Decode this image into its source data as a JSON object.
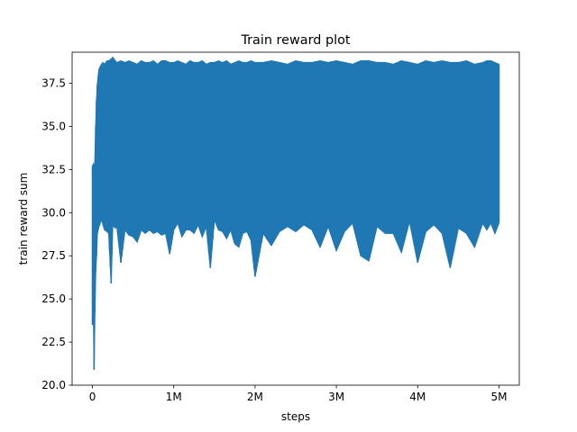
{
  "chart_data": {
    "type": "line",
    "title": "Train reward plot",
    "xlabel": "steps",
    "ylabel": "train reward sum",
    "xlim": [
      -250000,
      5250000
    ],
    "ylim": [
      20.0,
      39.3
    ],
    "grid": false,
    "legend": "none",
    "x_ticks": [
      {
        "value": 0,
        "label": "0"
      },
      {
        "value": 1000000,
        "label": "1M"
      },
      {
        "value": 2000000,
        "label": "2M"
      },
      {
        "value": 3000000,
        "label": "3M"
      },
      {
        "value": 4000000,
        "label": "4M"
      },
      {
        "value": 5000000,
        "label": "5M"
      }
    ],
    "y_ticks": [
      {
        "value": 20.0,
        "label": "20.0"
      },
      {
        "value": 22.5,
        "label": "22.5"
      },
      {
        "value": 25.0,
        "label": "25.0"
      },
      {
        "value": 27.5,
        "label": "27.5"
      },
      {
        "value": 30.0,
        "label": "30.0"
      },
      {
        "value": 32.5,
        "label": "32.5"
      },
      {
        "value": 35.0,
        "label": "35.0"
      },
      {
        "value": 37.5,
        "label": "37.5"
      }
    ],
    "series": [
      {
        "color": "#1f77b4",
        "x": [
          0,
          10000,
          20000,
          30000,
          40000,
          50000,
          60000,
          70000,
          80000,
          90000,
          100000,
          110000,
          130000,
          150000,
          180000,
          200000,
          230000,
          250000,
          280000,
          300000,
          350000,
          400000,
          450000,
          500000,
          550000,
          600000,
          650000,
          700000,
          750000,
          800000,
          850000,
          900000,
          950000,
          1000000,
          1050000,
          1100000,
          1150000,
          1200000,
          1250000,
          1300000,
          1350000,
          1400000,
          1450000,
          1500000,
          1550000,
          1600000,
          1650000,
          1700000,
          1750000,
          1800000,
          1850000,
          1900000,
          1950000,
          2000000,
          2100000,
          2200000,
          2300000,
          2400000,
          2500000,
          2600000,
          2700000,
          2800000,
          2900000,
          3000000,
          3100000,
          3200000,
          3300000,
          3400000,
          3500000,
          3600000,
          3700000,
          3800000,
          3900000,
          4000000,
          4100000,
          4200000,
          4300000,
          4400000,
          4500000,
          4600000,
          4700000,
          4800000,
          4850000,
          4900000,
          4950000,
          5000000
        ],
        "y_min": [
          23.5,
          25.0,
          20.9,
          24.2,
          26.6,
          27.5,
          28.8,
          29.0,
          29.2,
          29.3,
          29.5,
          29.6,
          29.3,
          29.0,
          28.9,
          28.8,
          25.9,
          29.3,
          29.1,
          29.2,
          27.1,
          29.0,
          28.7,
          28.6,
          28.3,
          29.0,
          28.8,
          29.0,
          28.8,
          28.9,
          28.7,
          28.8,
          27.6,
          29.0,
          29.4,
          28.6,
          29.0,
          29.0,
          28.8,
          29.3,
          28.6,
          29.2,
          26.8,
          29.6,
          29.0,
          28.9,
          28.5,
          29.0,
          28.2,
          28.0,
          28.8,
          28.9,
          28.4,
          26.3,
          28.8,
          28.1,
          28.9,
          29.2,
          28.9,
          29.3,
          29.0,
          28.0,
          29.2,
          27.8,
          28.9,
          29.4,
          27.5,
          27.2,
          29.2,
          28.8,
          28.8,
          27.7,
          29.5,
          27.1,
          28.9,
          29.3,
          28.8,
          26.8,
          29.1,
          28.8,
          28.0,
          29.4,
          29.0,
          29.4,
          28.8,
          29.4
        ],
        "y_max": [
          32.7,
          32.8,
          32.5,
          33.0,
          35.0,
          36.5,
          37.4,
          37.9,
          38.3,
          38.4,
          38.5,
          38.6,
          38.7,
          38.6,
          38.8,
          38.8,
          38.9,
          39.0,
          38.8,
          38.7,
          38.8,
          38.7,
          38.8,
          38.7,
          38.6,
          38.8,
          38.7,
          38.7,
          38.8,
          38.6,
          38.8,
          38.8,
          38.7,
          38.7,
          38.8,
          38.7,
          38.6,
          38.8,
          38.7,
          38.7,
          38.8,
          38.6,
          38.7,
          38.7,
          38.8,
          38.7,
          38.8,
          38.6,
          38.7,
          38.8,
          38.7,
          38.7,
          38.8,
          38.7,
          38.7,
          38.8,
          38.7,
          38.6,
          38.8,
          38.7,
          38.7,
          38.8,
          38.7,
          38.8,
          38.7,
          38.6,
          38.8,
          38.8,
          38.7,
          38.7,
          38.6,
          38.8,
          38.7,
          38.6,
          38.8,
          38.7,
          38.8,
          38.7,
          38.7,
          38.8,
          38.6,
          38.7,
          38.8,
          38.8,
          38.7,
          38.6
        ]
      }
    ]
  }
}
